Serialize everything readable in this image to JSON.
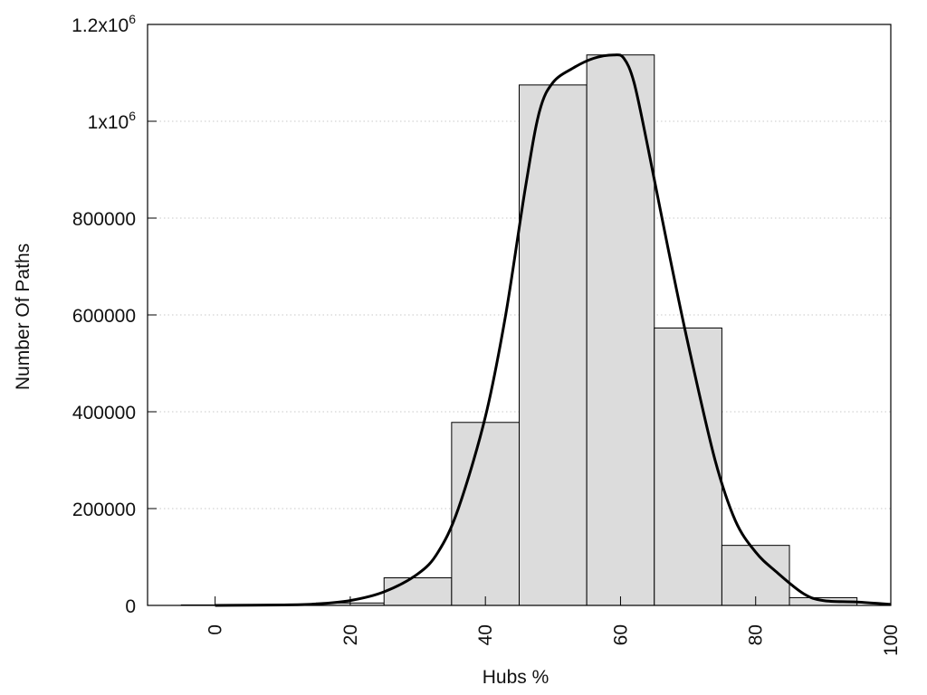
{
  "chart_data": {
    "type": "bar",
    "title": "",
    "xlabel": "Hubs %",
    "ylabel": "Number Of Paths",
    "xlim": [
      -10,
      100
    ],
    "ylim": [
      0,
      1200000
    ],
    "grid": true,
    "x_ticks": [
      {
        "value": 0,
        "label": "0"
      },
      {
        "value": 20,
        "label": "20"
      },
      {
        "value": 40,
        "label": "40"
      },
      {
        "value": 60,
        "label": "60"
      },
      {
        "value": 80,
        "label": "80"
      },
      {
        "value": 100,
        "label": "100"
      }
    ],
    "y_ticks": [
      {
        "value": 0,
        "label": "0",
        "sup": ""
      },
      {
        "value": 200000,
        "label": "200000",
        "sup": ""
      },
      {
        "value": 400000,
        "label": "400000",
        "sup": ""
      },
      {
        "value": 600000,
        "label": "600000",
        "sup": ""
      },
      {
        "value": 800000,
        "label": "800000",
        "sup": ""
      },
      {
        "value": 1000000,
        "label": "1x10",
        "sup": "6"
      },
      {
        "value": 1200000,
        "label": "1.2x10",
        "sup": "6"
      }
    ],
    "bins": [
      {
        "center": 0,
        "value": 1000
      },
      {
        "center": 10,
        "value": 1500
      },
      {
        "center": 20,
        "value": 5000
      },
      {
        "center": 30,
        "value": 57000
      },
      {
        "center": 40,
        "value": 378000
      },
      {
        "center": 50,
        "value": 1075000
      },
      {
        "center": 60,
        "value": 1137000
      },
      {
        "center": 70,
        "value": 573000
      },
      {
        "center": 80,
        "value": 124000
      },
      {
        "center": 90,
        "value": 16000
      }
    ],
    "bin_width": 10,
    "density_curve": {
      "x": [
        0,
        10,
        15,
        20,
        25,
        30,
        33,
        36,
        40,
        43,
        46,
        48,
        50,
        53,
        56,
        59,
        60.5,
        62,
        64,
        67,
        70,
        74,
        77,
        80,
        83,
        87,
        90,
        95,
        100
      ],
      "y": [
        0,
        1000,
        3000,
        10000,
        28000,
        65000,
        110000,
        200000,
        390000,
        600000,
        870000,
        1020000,
        1080000,
        1110000,
        1130000,
        1137000,
        1130000,
        1080000,
        950000,
        740000,
        540000,
        300000,
        175000,
        110000,
        70000,
        25000,
        10000,
        7000,
        2000
      ]
    },
    "colors": {
      "bar_fill": "#dcdcdc",
      "bar_stroke": "#000000",
      "curve": "#000000",
      "grid": "#c8c8c8"
    }
  }
}
